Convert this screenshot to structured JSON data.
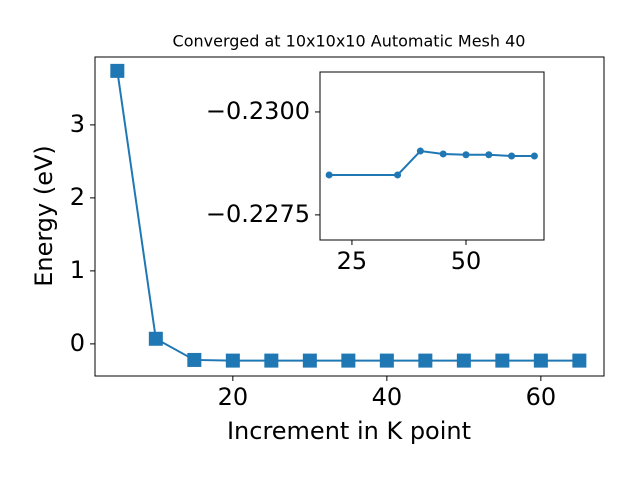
{
  "chart_data": [
    {
      "type": "line",
      "title": "Converged at 10x10x10 Automatic Mesh 40",
      "x_label": "Increment in K point",
      "y_label": "Energy (eV)",
      "x": [
        5,
        10,
        15,
        20,
        25,
        30,
        35,
        40,
        45,
        50,
        55,
        60,
        65
      ],
      "series": [
        {
          "color": "#1f77b4",
          "marker": "square",
          "values": [
            3.74,
            0.07,
            -0.22,
            -0.229,
            -0.229,
            -0.229,
            -0.229,
            -0.229,
            -0.229,
            -0.229,
            -0.229,
            -0.229,
            -0.229
          ]
        }
      ],
      "xlim": [
        2.1,
        68.2
      ],
      "ylim": [
        -0.44,
        3.93
      ],
      "xticks": [
        20,
        40,
        60
      ],
      "yticks": [
        0,
        1,
        2,
        3
      ]
    },
    {
      "type": "line",
      "x": [
        20,
        35,
        40,
        45,
        50,
        55,
        60,
        65
      ],
      "series": [
        {
          "color": "#1f77b4",
          "marker": "circle",
          "values": [
            -0.22847,
            -0.22847,
            -0.22905,
            -0.22898,
            -0.22896,
            -0.22896,
            -0.22893,
            -0.22893
          ]
        }
      ],
      "xlim": [
        18.0,
        67.1
      ],
      "ylim": [
        -0.22689,
        -0.23097
      ],
      "xticks": [
        25,
        50
      ],
      "yticks": [
        {
          "value": -0.2275,
          "label": "−0.2275"
        },
        {
          "value": -0.23,
          "label": "−0.2300"
        }
      ]
    }
  ]
}
